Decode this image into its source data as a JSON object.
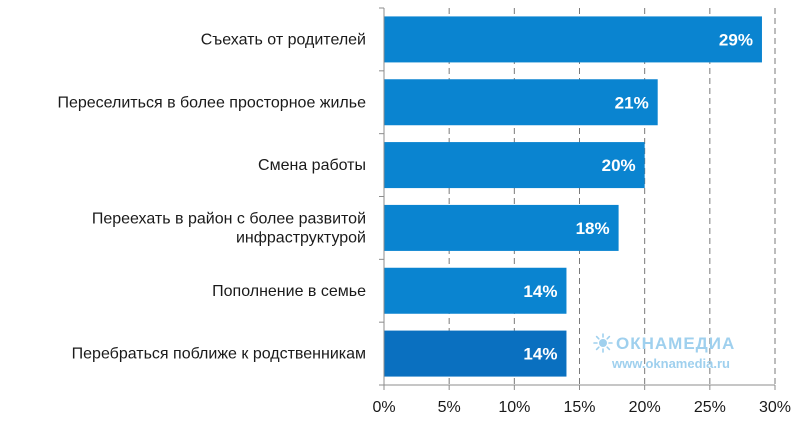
{
  "chart_data": {
    "type": "bar",
    "orientation": "horizontal",
    "categories": [
      [
        "Съехать от родителей"
      ],
      [
        "Переселиться в более просторное жилье"
      ],
      [
        "Смена работы"
      ],
      [
        "Переехать в район с более развитой",
        "инфраструктурой"
      ],
      [
        "Пополнение в семье"
      ],
      [
        "Перебраться поближе к родственникам"
      ]
    ],
    "values": [
      29,
      21,
      20,
      18,
      14,
      14
    ],
    "value_labels": [
      "29%",
      "21%",
      "20%",
      "18%",
      "14%",
      "14%"
    ],
    "xlim": [
      0,
      30
    ],
    "xticks": [
      0,
      5,
      10,
      15,
      20,
      25,
      30
    ],
    "xtick_labels": [
      "0%",
      "5%",
      "10%",
      "15%",
      "20%",
      "25%",
      "30%"
    ],
    "grid": "vertical dashed",
    "colors": {
      "bar": "#0a84d0",
      "bar_last": "#0a70c0",
      "grid": "#7a7a7a",
      "axis": "#8c8c8c"
    }
  },
  "watermark": {
    "brand": "ОКНАМЕДИА",
    "url": "www.oknamedia.ru",
    "icon": "sun-icon"
  }
}
